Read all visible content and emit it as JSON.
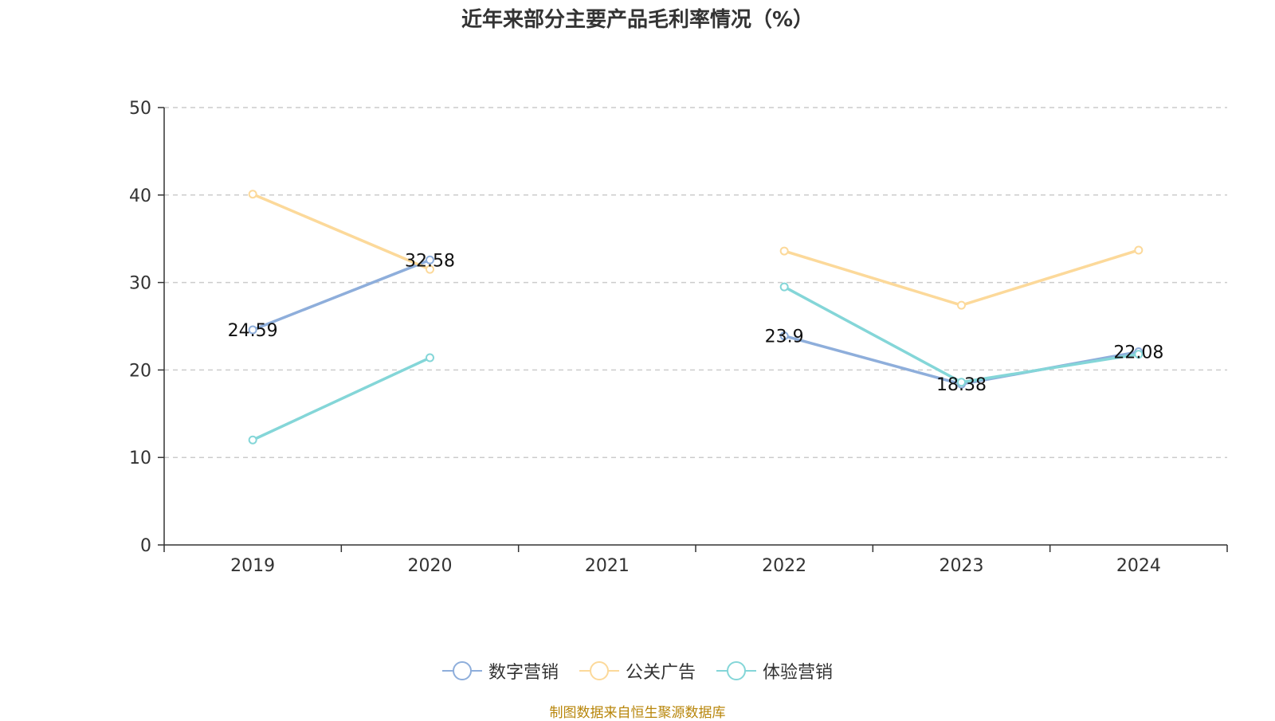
{
  "chart_data": {
    "type": "line",
    "title": "近年来部分主要产品毛利率情况（%）",
    "categories": [
      "2019",
      "2020",
      "2021",
      "2022",
      "2023",
      "2024"
    ],
    "ylim": [
      0,
      50
    ],
    "yticks": [
      0,
      10,
      20,
      30,
      40,
      50
    ],
    "grid": true,
    "legend_position": "bottom",
    "series": [
      {
        "name": "数字营销",
        "color": "#8eaedb",
        "values": [
          24.59,
          32.58,
          null,
          23.9,
          18.38,
          22.08
        ],
        "labeled": true
      },
      {
        "name": "公关广告",
        "color": "#fcd99a",
        "values": [
          40.1,
          31.5,
          null,
          33.6,
          27.4,
          33.7
        ],
        "labeled": false
      },
      {
        "name": "体验营销",
        "color": "#84d6d8",
        "values": [
          12.0,
          21.4,
          null,
          29.5,
          18.6,
          21.8
        ],
        "labeled": false
      }
    ]
  },
  "source_note": "制图数据来自恒生聚源数据库"
}
